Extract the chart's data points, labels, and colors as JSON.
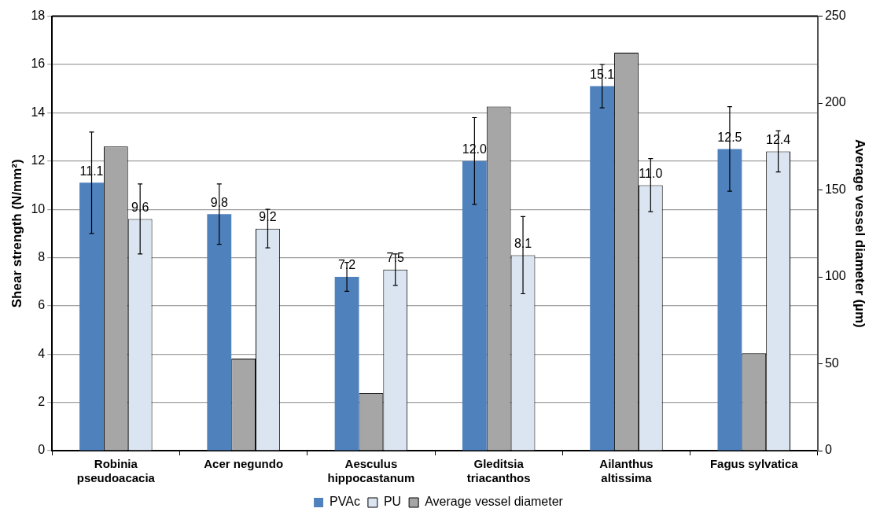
{
  "chart_data": {
    "type": "bar",
    "categories": [
      "Robinia pseudoacacia",
      "Acer negundo",
      "Aesculus hippocastanum",
      "Gleditsia triacanthos",
      "Ailanthus altissima",
      "Fagus sylvatica"
    ],
    "series": [
      {
        "name": "PVAc",
        "color": "#4f81bd",
        "values": [
          11.1,
          9.8,
          7.2,
          12.0,
          15.1,
          12.5
        ],
        "errors": [
          2.1,
          1.25,
          0.6,
          1.8,
          0.9,
          1.75
        ],
        "value_labels": [
          "11.1",
          "9.8",
          "7.2",
          "12.0",
          "15.1",
          "12.5"
        ]
      },
      {
        "name": "Average vessel diameter",
        "color": "#a6a6a6",
        "axis": "y2",
        "values": [
          175,
          53,
          33,
          198,
          229,
          56
        ]
      },
      {
        "name": "PU",
        "color": "#dbe5f1",
        "values": [
          9.6,
          9.2,
          7.5,
          8.1,
          11.0,
          12.4
        ],
        "errors": [
          1.45,
          0.8,
          0.65,
          1.6,
          1.1,
          0.85
        ],
        "value_labels": [
          "9.6",
          "9.2",
          "7.5",
          "8.1",
          "11.0",
          "12.4"
        ]
      }
    ],
    "ylabel": "Shear strength (N/mm²)",
    "y2label": "Average vessel diameter (µm)",
    "ylim": [
      0,
      18
    ],
    "yticks": [
      0,
      2,
      4,
      6,
      8,
      10,
      12,
      14,
      16,
      18
    ],
    "y2lim": [
      0,
      250
    ],
    "y2ticks": [
      0,
      50,
      100,
      150,
      200,
      250
    ],
    "grid": "y",
    "legend": "bottom"
  }
}
